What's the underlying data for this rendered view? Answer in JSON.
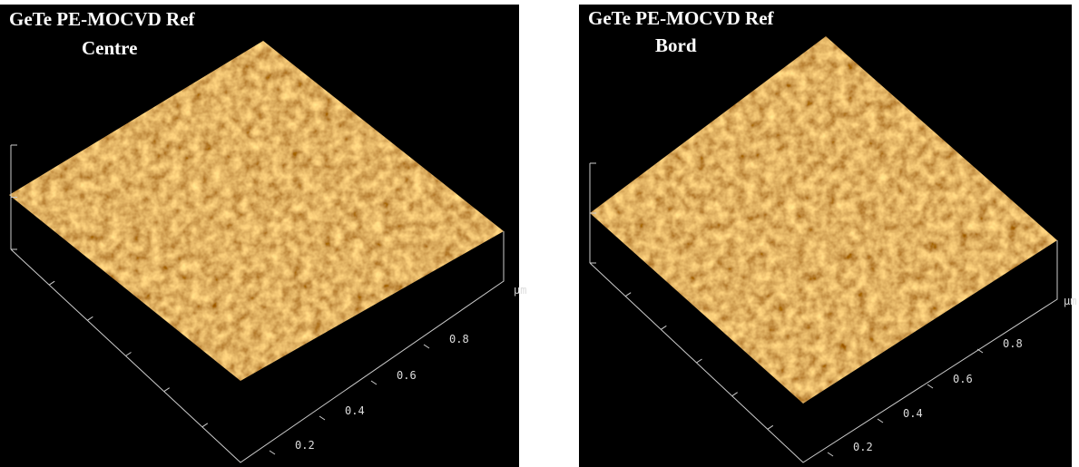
{
  "panels": [
    {
      "title": "GeTe PE-MOCVD Ref",
      "subtitle": "Centre",
      "axis_labels": [
        "0.2",
        "0.4",
        "0.6",
        "0.8"
      ],
      "unit": "µm"
    },
    {
      "title": "GeTe PE-MOCVD Ref",
      "subtitle": "Bord",
      "axis_labels": [
        "0.2",
        "0.4",
        "0.6",
        "0.8"
      ],
      "unit": "µm"
    }
  ]
}
